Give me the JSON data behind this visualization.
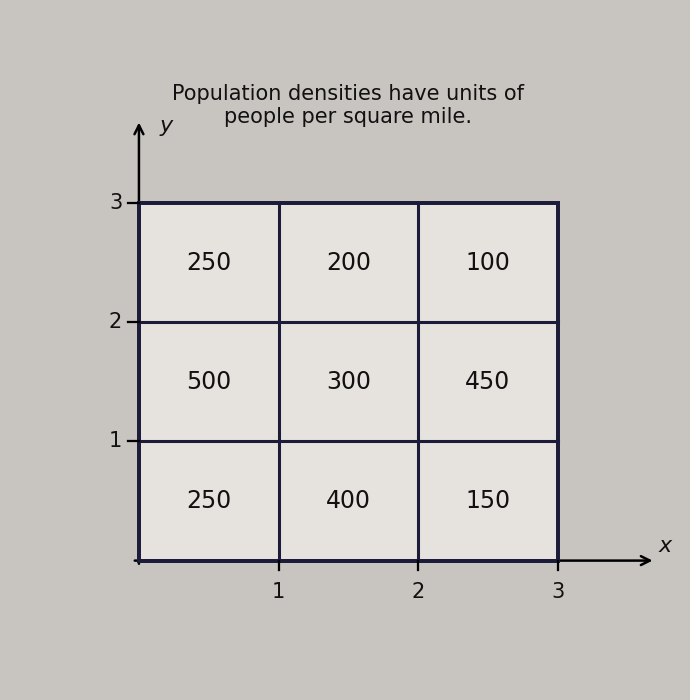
{
  "title": "Population densities have units of\npeople per square mile.",
  "title_fontsize": 15,
  "grid_values": [
    [
      250,
      200,
      100
    ],
    [
      500,
      300,
      450
    ],
    [
      250,
      400,
      150
    ]
  ],
  "x_ticks": [
    1,
    2,
    3
  ],
  "y_ticks": [
    1,
    2,
    3
  ],
  "xlabel": "x",
  "ylabel": "y",
  "grid_color": "#1c1c3a",
  "text_color": "#111111",
  "bg_color": "#c8c4c0",
  "cell_bg": "#e6e2de",
  "value_fontsize": 17,
  "tick_fontsize": 15,
  "axis_label_fontsize": 16,
  "grid_lw": 2.2,
  "axis_lw": 1.8,
  "col_edges": [
    0,
    1,
    2,
    3
  ],
  "row_edges": [
    0,
    1,
    2,
    3
  ]
}
